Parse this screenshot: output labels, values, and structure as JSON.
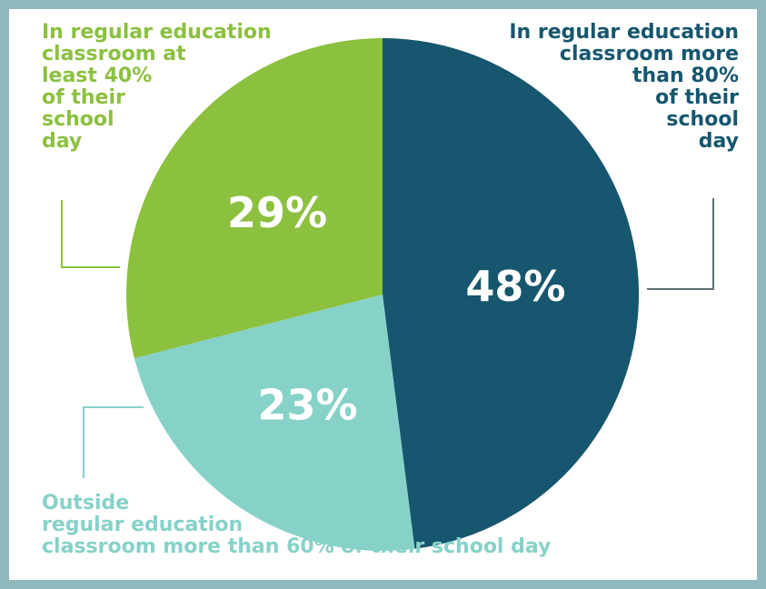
{
  "colors": {
    "navy": "#16566e",
    "green": "#8cc03f",
    "teal": "#86d2c8",
    "frame": "#8fb9bd",
    "background": "#ffffff",
    "leader": "#5e6f72"
  },
  "chart_data": {
    "type": "pie",
    "slices": [
      {
        "label": "In regular education\nclassroom more\nthan 80%\nof their\nschool\nday",
        "value": 48,
        "value_label": "48%",
        "color": "#16566e"
      },
      {
        "label": "Outside\nregular education\nclassroom more than 60% of their school day",
        "value": 23,
        "value_label": "23%",
        "color": "#86d2c8"
      },
      {
        "label": "In regular education\nclassroom at\nleast 40%\nof their\nschool\nday",
        "value": 29,
        "value_label": "29%",
        "color": "#8cc03f"
      }
    ],
    "start_angle_deg": 0,
    "direction": "clockwise",
    "legend": "none"
  }
}
